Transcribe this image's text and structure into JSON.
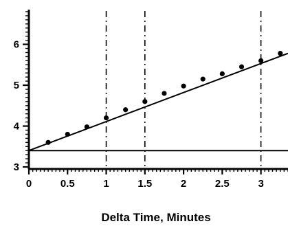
{
  "chart_data": {
    "type": "scatter",
    "xlabel": "Delta Time, Minutes",
    "ylabel": "",
    "title": "",
    "xlim": [
      0,
      3.35
    ],
    "ylim": [
      2.95,
      6.85
    ],
    "x_ticks": [
      0,
      0.5,
      1,
      1.5,
      2,
      2.5,
      3
    ],
    "x_tick_labels": [
      "0",
      "0.5",
      "1",
      "1.5",
      "2",
      "2.5",
      "3"
    ],
    "y_ticks": [
      3,
      4,
      5,
      6
    ],
    "y_tick_labels": [
      "3",
      "4",
      "5",
      "6"
    ],
    "series": [
      {
        "type": "scatter",
        "x": [
          0.25,
          0.5,
          0.75,
          1.0,
          1.25,
          1.5,
          1.75,
          2.0,
          2.25,
          2.5,
          2.75,
          3.0,
          3.25
        ],
        "y": [
          3.6,
          3.8,
          3.98,
          4.2,
          4.4,
          4.6,
          4.8,
          4.98,
          5.15,
          5.28,
          5.45,
          5.6,
          5.78
        ]
      },
      {
        "type": "line",
        "x": [
          0,
          3.35
        ],
        "y": [
          3.4,
          5.78
        ]
      },
      {
        "type": "hline",
        "y": 3.4
      }
    ],
    "vertical_dashed_x": [
      1,
      1.5,
      3
    ],
    "grid": false,
    "colors": {
      "marks": "#000000",
      "background": "#ffffff"
    }
  }
}
